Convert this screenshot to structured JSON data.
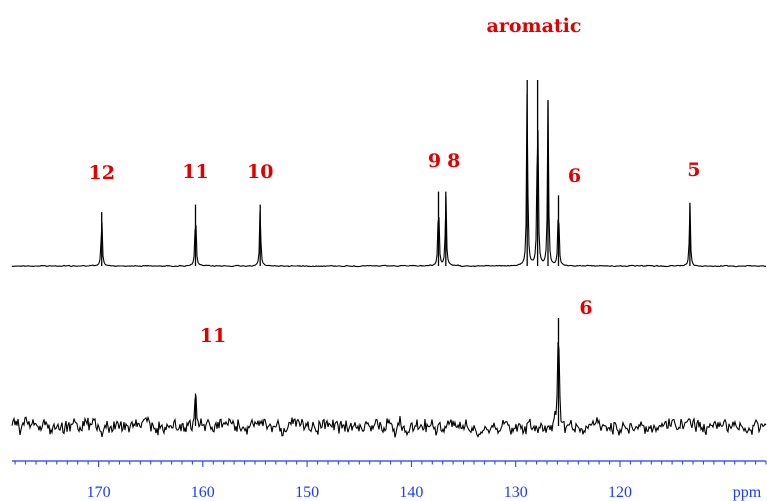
{
  "chart_data": {
    "type": "line",
    "xlabel": "ppm",
    "x_axis": {
      "range": [
        178.3,
        106.0
      ],
      "reversed": true,
      "major_ticks": [
        170,
        160,
        150,
        140,
        130,
        120
      ],
      "tick_labels": [
        "170",
        "160",
        "150",
        "140",
        "130",
        "120"
      ],
      "minor_tick_step": 1
    },
    "series": [
      {
        "spectrum": "upper",
        "peaks": [
          {
            "label": "12",
            "ppm": 169.7,
            "intensity": 0.29
          },
          {
            "label": "11",
            "ppm": 160.7,
            "intensity": 0.33
          },
          {
            "label": "10",
            "ppm": 154.5,
            "intensity": 0.33
          },
          {
            "label": "9",
            "ppm": 137.4,
            "intensity": 0.4
          },
          {
            "label": "8",
            "ppm": 136.7,
            "intensity": 0.4
          },
          {
            "label": "",
            "ppm": 128.9,
            "intensity": 1.0
          },
          {
            "label": "",
            "ppm": 127.9,
            "intensity": 1.0
          },
          {
            "label": "",
            "ppm": 126.9,
            "intensity": 0.89
          },
          {
            "label": "6",
            "ppm": 125.9,
            "intensity": 0.38
          },
          {
            "label": "5",
            "ppm": 113.3,
            "intensity": 0.34
          }
        ],
        "group_labels": [
          {
            "text": "aromatic",
            "ppm": 127.9
          }
        ]
      },
      {
        "spectrum": "lower",
        "peaks": [
          {
            "label": "11",
            "ppm": 160.7,
            "intensity": 0.3
          },
          {
            "label": "6",
            "ppm": 125.9,
            "intensity": 1.0
          }
        ]
      }
    ],
    "grid": false
  }
}
